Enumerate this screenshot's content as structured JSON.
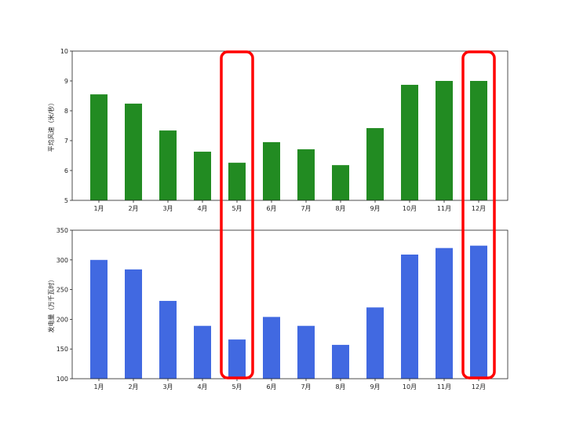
{
  "chart_data": [
    {
      "type": "bar",
      "categories": [
        "1月",
        "2月",
        "3月",
        "4月",
        "5月",
        "6月",
        "7月",
        "8月",
        "9月",
        "10月",
        "11月",
        "12月"
      ],
      "values": [
        8.55,
        8.24,
        7.34,
        6.63,
        6.26,
        6.95,
        6.71,
        6.18,
        7.42,
        8.87,
        9.0,
        9.0
      ],
      "xlabel": "",
      "ylabel": "平均风速（米/秒）",
      "ylim": [
        5,
        10
      ],
      "yticks": [
        5,
        6,
        7,
        8,
        9,
        10
      ],
      "color": "#228b22",
      "grid": false
    },
    {
      "type": "bar",
      "categories": [
        "1月",
        "2月",
        "3月",
        "4月",
        "5月",
        "6月",
        "7月",
        "8月",
        "9月",
        "10月",
        "11月",
        "12月"
      ],
      "values": [
        300,
        284,
        231,
        189,
        166,
        204,
        189,
        157,
        220,
        309,
        320,
        324
      ],
      "xlabel": "",
      "ylabel": "发电量（万千瓦时）",
      "ylim": [
        100,
        350
      ],
      "yticks": [
        100,
        150,
        200,
        250,
        300,
        350
      ],
      "color": "#4169e1",
      "grid": false
    }
  ],
  "highlights": {
    "categories": [
      "5月",
      "12月"
    ],
    "color": "#ff0000"
  }
}
